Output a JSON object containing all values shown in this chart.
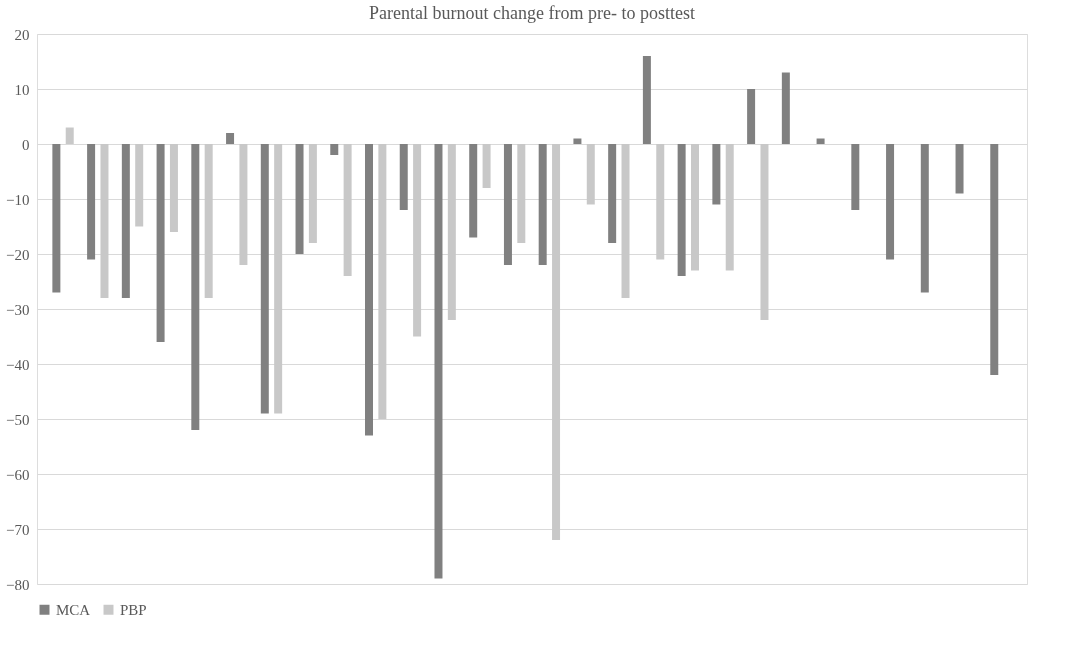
{
  "chart_data": {
    "type": "bar",
    "title": "Parental burnout change from pre- to posttest",
    "categories": [
      null,
      null,
      null,
      null,
      null,
      null,
      null,
      null,
      null,
      null,
      null,
      null,
      null,
      null,
      null,
      null,
      null,
      null,
      null,
      null,
      null,
      null,
      null,
      null,
      null,
      null,
      null,
      null
    ],
    "series": [
      {
        "name": "MCA",
        "color": "#808080",
        "values": [
          -27,
          -21,
          -28,
          -36,
          -52,
          2,
          -49,
          -20,
          -2,
          -53,
          -12,
          -79,
          -17,
          -22,
          -22,
          1,
          -18,
          16,
          -24,
          -11,
          10,
          13,
          1,
          -12,
          -21,
          -27,
          -9,
          -42
        ]
      },
      {
        "name": "PBP",
        "color": "#c8c8c8",
        "values": [
          3,
          -28,
          -15,
          -16,
          -28,
          -22,
          -49,
          -18,
          -24,
          -50,
          -35,
          -32,
          -8,
          -18,
          -72,
          -11,
          -28,
          -21,
          -23,
          -23,
          -32,
          null,
          null,
          null,
          null,
          null,
          null,
          null
        ]
      }
    ],
    "ylim": [
      -80,
      20
    ],
    "yticks": [
      -80,
      -70,
      -60,
      -50,
      -40,
      -30,
      -20,
      -10,
      0,
      10,
      20
    ],
    "grid": "y",
    "legend": "bottom"
  }
}
